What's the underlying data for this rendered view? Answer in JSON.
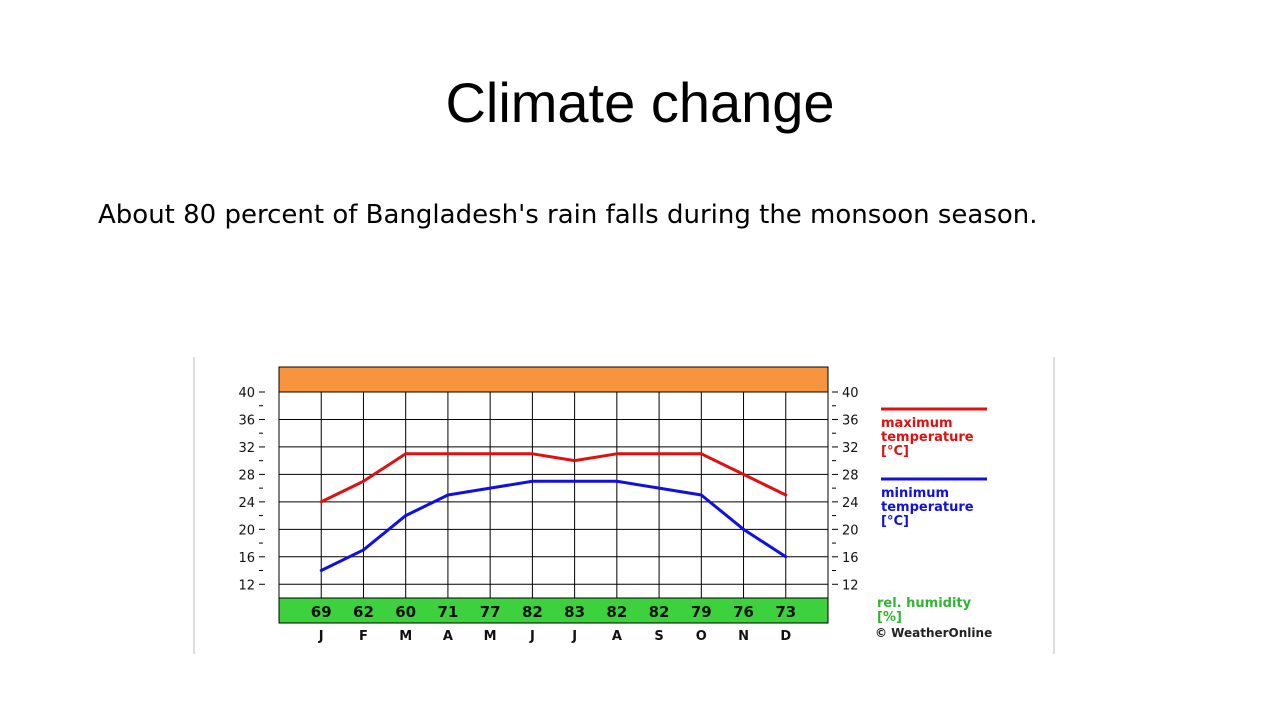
{
  "slide": {
    "title": "Climate change",
    "body": "About 80 percent of Bangladesh's rain falls during the monsoon season."
  },
  "chart_data": {
    "type": "line",
    "categories": [
      "J",
      "F",
      "M",
      "A",
      "M",
      "J",
      "J",
      "A",
      "S",
      "O",
      "N",
      "D"
    ],
    "yticks": [
      12,
      16,
      20,
      24,
      28,
      32,
      36,
      40
    ],
    "ylim": [
      10,
      40
    ],
    "grid": true,
    "legend_position": "right",
    "series": [
      {
        "name": "maximum temperature [°C]",
        "legend_lines": [
          "maximum",
          "temperature",
          "[°C]"
        ],
        "color": "#e01010",
        "values": [
          24,
          27,
          31,
          31,
          31,
          31,
          30,
          31,
          31,
          31,
          28,
          25
        ]
      },
      {
        "name": "minimum temperature [°C]",
        "legend_lines": [
          "minimum",
          "temperature",
          "[°C]"
        ],
        "color": "#1010e0",
        "values": [
          14,
          17,
          22,
          25,
          26,
          27,
          27,
          27,
          26,
          25,
          20,
          16
        ]
      }
    ],
    "humidity": {
      "legend_lines": [
        "rel. humidity",
        "[%]"
      ],
      "values": [
        69,
        62,
        60,
        71,
        77,
        82,
        83,
        82,
        82,
        79,
        76,
        73
      ],
      "color": "#3ed13e"
    },
    "top_band_color": "#f7953e",
    "credit": "© WeatherOnline"
  }
}
